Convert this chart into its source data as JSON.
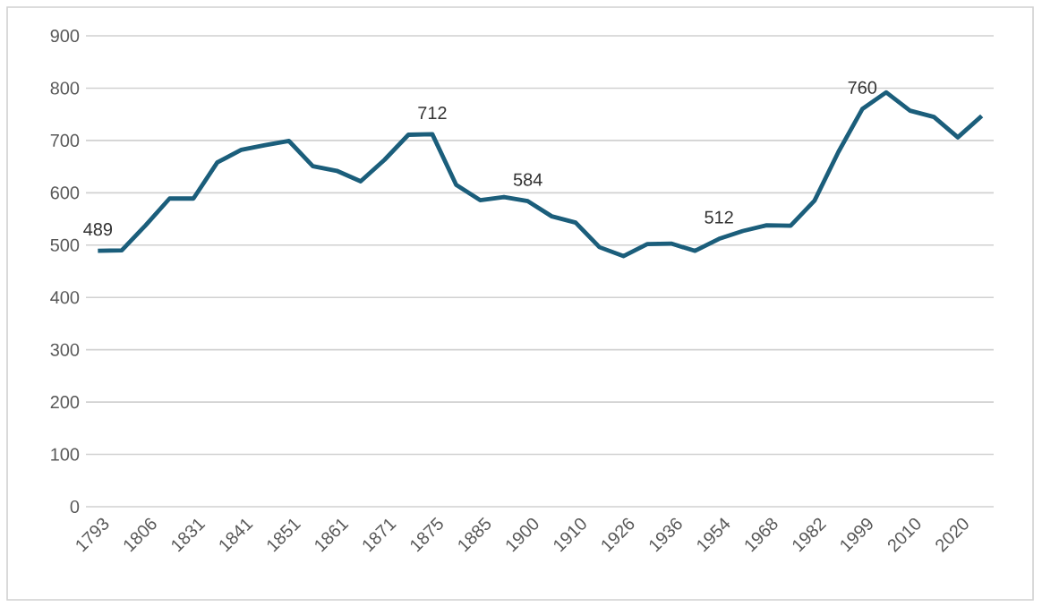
{
  "chart_data": {
    "type": "line",
    "color": "#1b5e7b",
    "grid": "y",
    "ylim": [
      0,
      900
    ],
    "yticks": [
      0,
      100,
      200,
      300,
      400,
      500,
      600,
      700,
      800,
      900
    ],
    "categories": [
      "1793",
      null,
      "1806",
      null,
      "1831",
      null,
      "1841",
      null,
      "1851",
      null,
      "1861",
      null,
      "1871",
      null,
      "1875",
      null,
      "1885",
      null,
      "1900",
      null,
      "1910",
      null,
      "1926",
      null,
      "1936",
      null,
      "1954",
      null,
      "1968",
      null,
      "1982",
      null,
      "1999",
      null,
      "2010",
      null,
      "2020",
      null
    ],
    "values": [
      489,
      490,
      538,
      589,
      589,
      658,
      682,
      691,
      699,
      651,
      642,
      622,
      663,
      711,
      712,
      615,
      586,
      592,
      584,
      555,
      543,
      496,
      479,
      502,
      503,
      489,
      512,
      527,
      538,
      537,
      585,
      678,
      760,
      792,
      757,
      745,
      706,
      747
    ],
    "value_labels": [
      "489",
      null,
      null,
      null,
      null,
      null,
      null,
      null,
      null,
      null,
      null,
      null,
      null,
      null,
      "712",
      null,
      null,
      null,
      "584",
      null,
      null,
      null,
      null,
      null,
      null,
      null,
      "512",
      null,
      null,
      null,
      null,
      null,
      "760",
      null,
      null,
      null,
      null,
      null
    ]
  }
}
